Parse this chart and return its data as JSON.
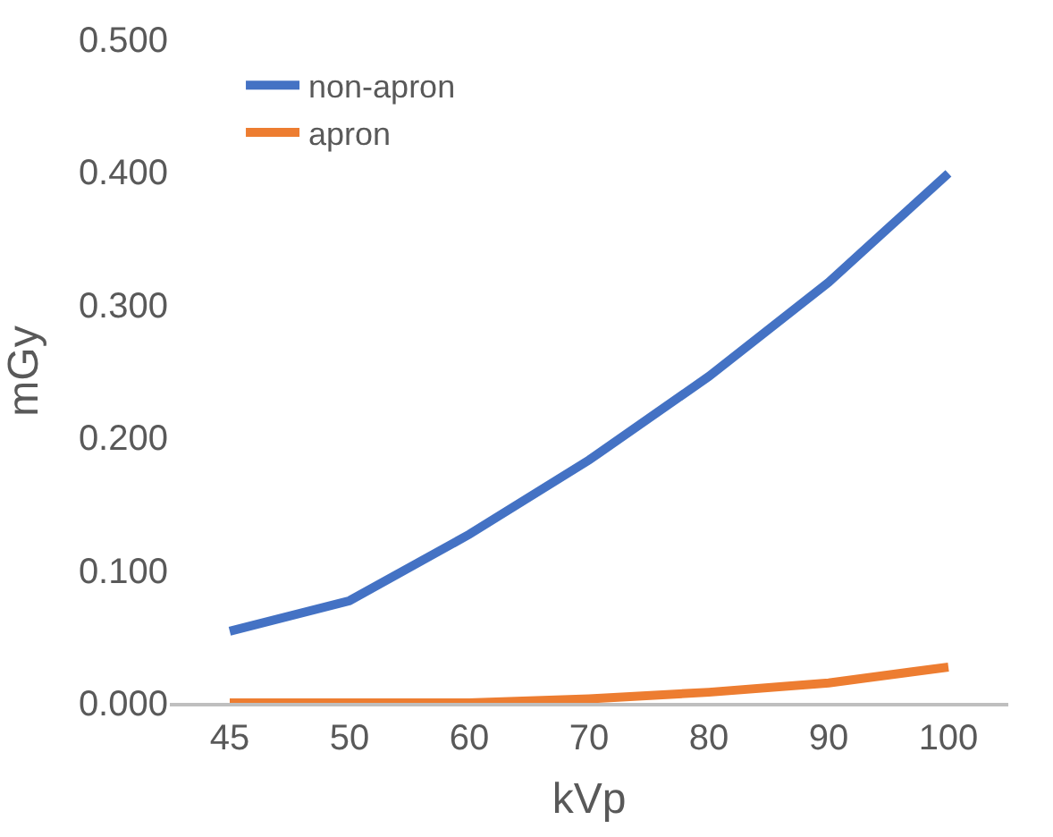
{
  "chart_data": {
    "type": "line",
    "xlabel": "kVp",
    "ylabel": "mGy",
    "categories": [
      "45",
      "50",
      "60",
      "70",
      "80",
      "90",
      "100"
    ],
    "series": [
      {
        "name": "non-apron",
        "color": "#4472c4",
        "values": [
          0.054,
          0.077,
          0.127,
          0.183,
          0.246,
          0.317,
          0.399
        ]
      },
      {
        "name": "apron",
        "color": "#ed7d31",
        "values": [
          0.0,
          0.0,
          0.0,
          0.003,
          0.008,
          0.015,
          0.027
        ]
      }
    ],
    "ylim": [
      0,
      0.5
    ],
    "yticks": [
      {
        "value": 0,
        "label": "0.000"
      },
      {
        "value": 0.1,
        "label": "0.100"
      },
      {
        "value": 0.2,
        "label": "0.200"
      },
      {
        "value": 0.3,
        "label": "0.300"
      },
      {
        "value": 0.4,
        "label": "0.400"
      },
      {
        "value": 0.5,
        "label": "0.500"
      }
    ],
    "legend": "top left",
    "marker": "none",
    "line_style": "solid"
  }
}
